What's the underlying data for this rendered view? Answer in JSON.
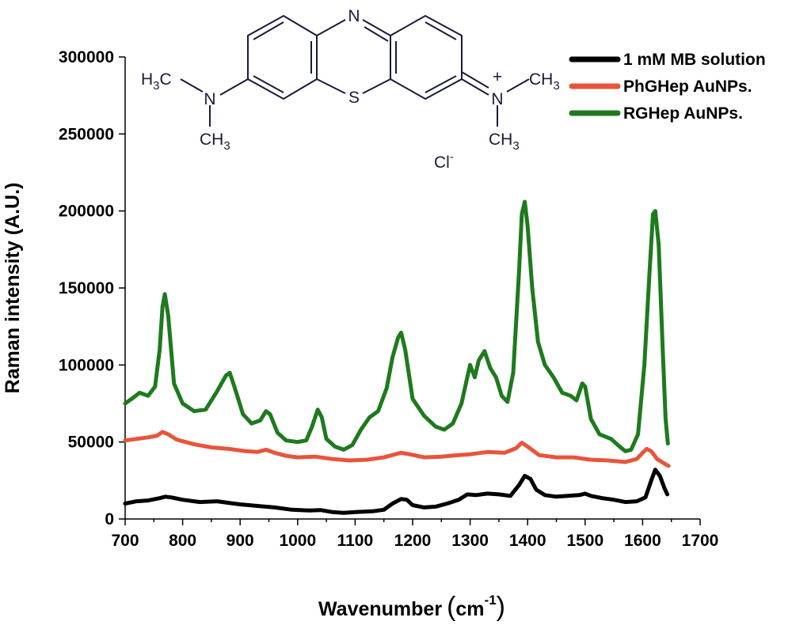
{
  "chart_data": {
    "type": "line",
    "xlabel": "Wavenumber",
    "xlabel_unit": "cm",
    "xlabel_unit_exp": "-1",
    "ylabel": "Raman intensity (A.U.)",
    "xlim": [
      700,
      1700
    ],
    "ylim": [
      0,
      300000
    ],
    "x_ticks": [
      700,
      800,
      900,
      1000,
      1100,
      1200,
      1300,
      1400,
      1500,
      1600,
      1700
    ],
    "y_ticks": [
      0,
      50000,
      100000,
      150000,
      200000,
      250000,
      300000
    ],
    "x_tick_labels": [
      "700",
      "800",
      "900",
      "1000",
      "1100",
      "1200",
      "1300",
      "1400",
      "1500",
      "1600",
      "1700"
    ],
    "y_tick_labels": [
      "0",
      "50000",
      "100000",
      "150000",
      "200000",
      "250000",
      "300000"
    ],
    "legend_position": "top-right",
    "grid": false,
    "series": [
      {
        "name": "1 mM MB solution",
        "color": "#000000",
        "points": [
          [
            700,
            10000
          ],
          [
            720,
            11500
          ],
          [
            740,
            12000
          ],
          [
            760,
            13500
          ],
          [
            770,
            14500
          ],
          [
            780,
            14000
          ],
          [
            800,
            12500
          ],
          [
            830,
            11000
          ],
          [
            860,
            11500
          ],
          [
            880,
            10500
          ],
          [
            900,
            9500
          ],
          [
            930,
            8500
          ],
          [
            960,
            7500
          ],
          [
            990,
            6000
          ],
          [
            1020,
            5500
          ],
          [
            1040,
            5800
          ],
          [
            1060,
            4500
          ],
          [
            1080,
            4000
          ],
          [
            1100,
            4500
          ],
          [
            1130,
            5000
          ],
          [
            1150,
            6000
          ],
          [
            1165,
            10000
          ],
          [
            1180,
            13000
          ],
          [
            1190,
            12500
          ],
          [
            1200,
            9000
          ],
          [
            1220,
            7500
          ],
          [
            1240,
            8000
          ],
          [
            1260,
            10000
          ],
          [
            1280,
            12500
          ],
          [
            1295,
            16000
          ],
          [
            1310,
            15500
          ],
          [
            1330,
            16500
          ],
          [
            1350,
            16000
          ],
          [
            1370,
            15000
          ],
          [
            1385,
            22000
          ],
          [
            1395,
            28000
          ],
          [
            1405,
            26000
          ],
          [
            1415,
            19000
          ],
          [
            1430,
            15500
          ],
          [
            1450,
            14500
          ],
          [
            1470,
            15000
          ],
          [
            1490,
            15500
          ],
          [
            1500,
            16500
          ],
          [
            1510,
            15000
          ],
          [
            1530,
            13500
          ],
          [
            1550,
            12500
          ],
          [
            1570,
            11000
          ],
          [
            1590,
            11500
          ],
          [
            1605,
            14000
          ],
          [
            1615,
            25000
          ],
          [
            1622,
            32000
          ],
          [
            1630,
            28000
          ],
          [
            1638,
            20000
          ],
          [
            1643,
            16000
          ]
        ]
      },
      {
        "name": "PhGHep AuNPs.",
        "color": "#e8543c",
        "points": [
          [
            700,
            51000
          ],
          [
            720,
            52000
          ],
          [
            740,
            53000
          ],
          [
            755,
            54000
          ],
          [
            765,
            56500
          ],
          [
            775,
            55000
          ],
          [
            790,
            51500
          ],
          [
            820,
            48500
          ],
          [
            850,
            46500
          ],
          [
            880,
            45500
          ],
          [
            910,
            44000
          ],
          [
            930,
            43500
          ],
          [
            945,
            45000
          ],
          [
            960,
            43000
          ],
          [
            980,
            41000
          ],
          [
            1000,
            40000
          ],
          [
            1030,
            40500
          ],
          [
            1060,
            39000
          ],
          [
            1090,
            38000
          ],
          [
            1120,
            38500
          ],
          [
            1150,
            40000
          ],
          [
            1170,
            42000
          ],
          [
            1180,
            43000
          ],
          [
            1195,
            42000
          ],
          [
            1220,
            40000
          ],
          [
            1250,
            40500
          ],
          [
            1280,
            41500
          ],
          [
            1300,
            42000
          ],
          [
            1330,
            43500
          ],
          [
            1360,
            43000
          ],
          [
            1380,
            46000
          ],
          [
            1390,
            49500
          ],
          [
            1400,
            47000
          ],
          [
            1420,
            41500
          ],
          [
            1450,
            40000
          ],
          [
            1480,
            40000
          ],
          [
            1510,
            38500
          ],
          [
            1540,
            38000
          ],
          [
            1570,
            37000
          ],
          [
            1590,
            39000
          ],
          [
            1600,
            43000
          ],
          [
            1607,
            45500
          ],
          [
            1615,
            44000
          ],
          [
            1625,
            39000
          ],
          [
            1640,
            35500
          ],
          [
            1645,
            34500
          ]
        ]
      },
      {
        "name": "RGHep AuNPs.",
        "color": "#1e7a1e",
        "points": [
          [
            700,
            75000
          ],
          [
            715,
            79000
          ],
          [
            725,
            82000
          ],
          [
            740,
            80000
          ],
          [
            752,
            86000
          ],
          [
            760,
            110000
          ],
          [
            765,
            138000
          ],
          [
            769,
            146000
          ],
          [
            775,
            132000
          ],
          [
            785,
            88000
          ],
          [
            800,
            75000
          ],
          [
            820,
            70000
          ],
          [
            840,
            71000
          ],
          [
            860,
            83000
          ],
          [
            875,
            93000
          ],
          [
            882,
            95000
          ],
          [
            890,
            86000
          ],
          [
            905,
            68000
          ],
          [
            920,
            62000
          ],
          [
            935,
            64000
          ],
          [
            945,
            70000
          ],
          [
            952,
            68000
          ],
          [
            965,
            56000
          ],
          [
            980,
            51000
          ],
          [
            1000,
            50000
          ],
          [
            1015,
            51000
          ],
          [
            1025,
            60000
          ],
          [
            1035,
            71000
          ],
          [
            1042,
            66000
          ],
          [
            1050,
            52000
          ],
          [
            1065,
            47000
          ],
          [
            1080,
            45000
          ],
          [
            1095,
            48000
          ],
          [
            1110,
            58000
          ],
          [
            1125,
            66000
          ],
          [
            1140,
            70000
          ],
          [
            1155,
            85000
          ],
          [
            1165,
            105000
          ],
          [
            1175,
            118000
          ],
          [
            1180,
            121000
          ],
          [
            1187,
            110000
          ],
          [
            1200,
            78000
          ],
          [
            1220,
            67000
          ],
          [
            1240,
            60000
          ],
          [
            1255,
            58000
          ],
          [
            1270,
            62000
          ],
          [
            1285,
            75000
          ],
          [
            1295,
            92000
          ],
          [
            1300,
            100000
          ],
          [
            1308,
            92000
          ],
          [
            1315,
            103000
          ],
          [
            1325,
            109000
          ],
          [
            1335,
            98000
          ],
          [
            1345,
            92000
          ],
          [
            1355,
            80000
          ],
          [
            1365,
            76000
          ],
          [
            1375,
            95000
          ],
          [
            1385,
            160000
          ],
          [
            1390,
            198000
          ],
          [
            1395,
            206000
          ],
          [
            1400,
            190000
          ],
          [
            1408,
            150000
          ],
          [
            1418,
            115000
          ],
          [
            1430,
            100000
          ],
          [
            1445,
            92000
          ],
          [
            1460,
            82000
          ],
          [
            1475,
            80000
          ],
          [
            1485,
            77000
          ],
          [
            1495,
            88000
          ],
          [
            1500,
            86000
          ],
          [
            1510,
            65000
          ],
          [
            1525,
            55000
          ],
          [
            1545,
            52000
          ],
          [
            1560,
            47000
          ],
          [
            1570,
            44000
          ],
          [
            1580,
            45000
          ],
          [
            1592,
            55000
          ],
          [
            1603,
            100000
          ],
          [
            1612,
            160000
          ],
          [
            1618,
            198000
          ],
          [
            1622,
            200000
          ],
          [
            1628,
            178000
          ],
          [
            1635,
            110000
          ],
          [
            1640,
            65000
          ],
          [
            1644,
            49000
          ]
        ]
      }
    ]
  },
  "molecule": {
    "atom_n_top": "N",
    "atom_s": "S",
    "atom_n_left": "N",
    "atom_n_right": "N",
    "charge": "+",
    "methyl_h": "H",
    "methyl_3": "3",
    "methyl_c": "C",
    "methyl_ch": "CH",
    "counter_ion": "Cl",
    "counter_charge": "-"
  }
}
